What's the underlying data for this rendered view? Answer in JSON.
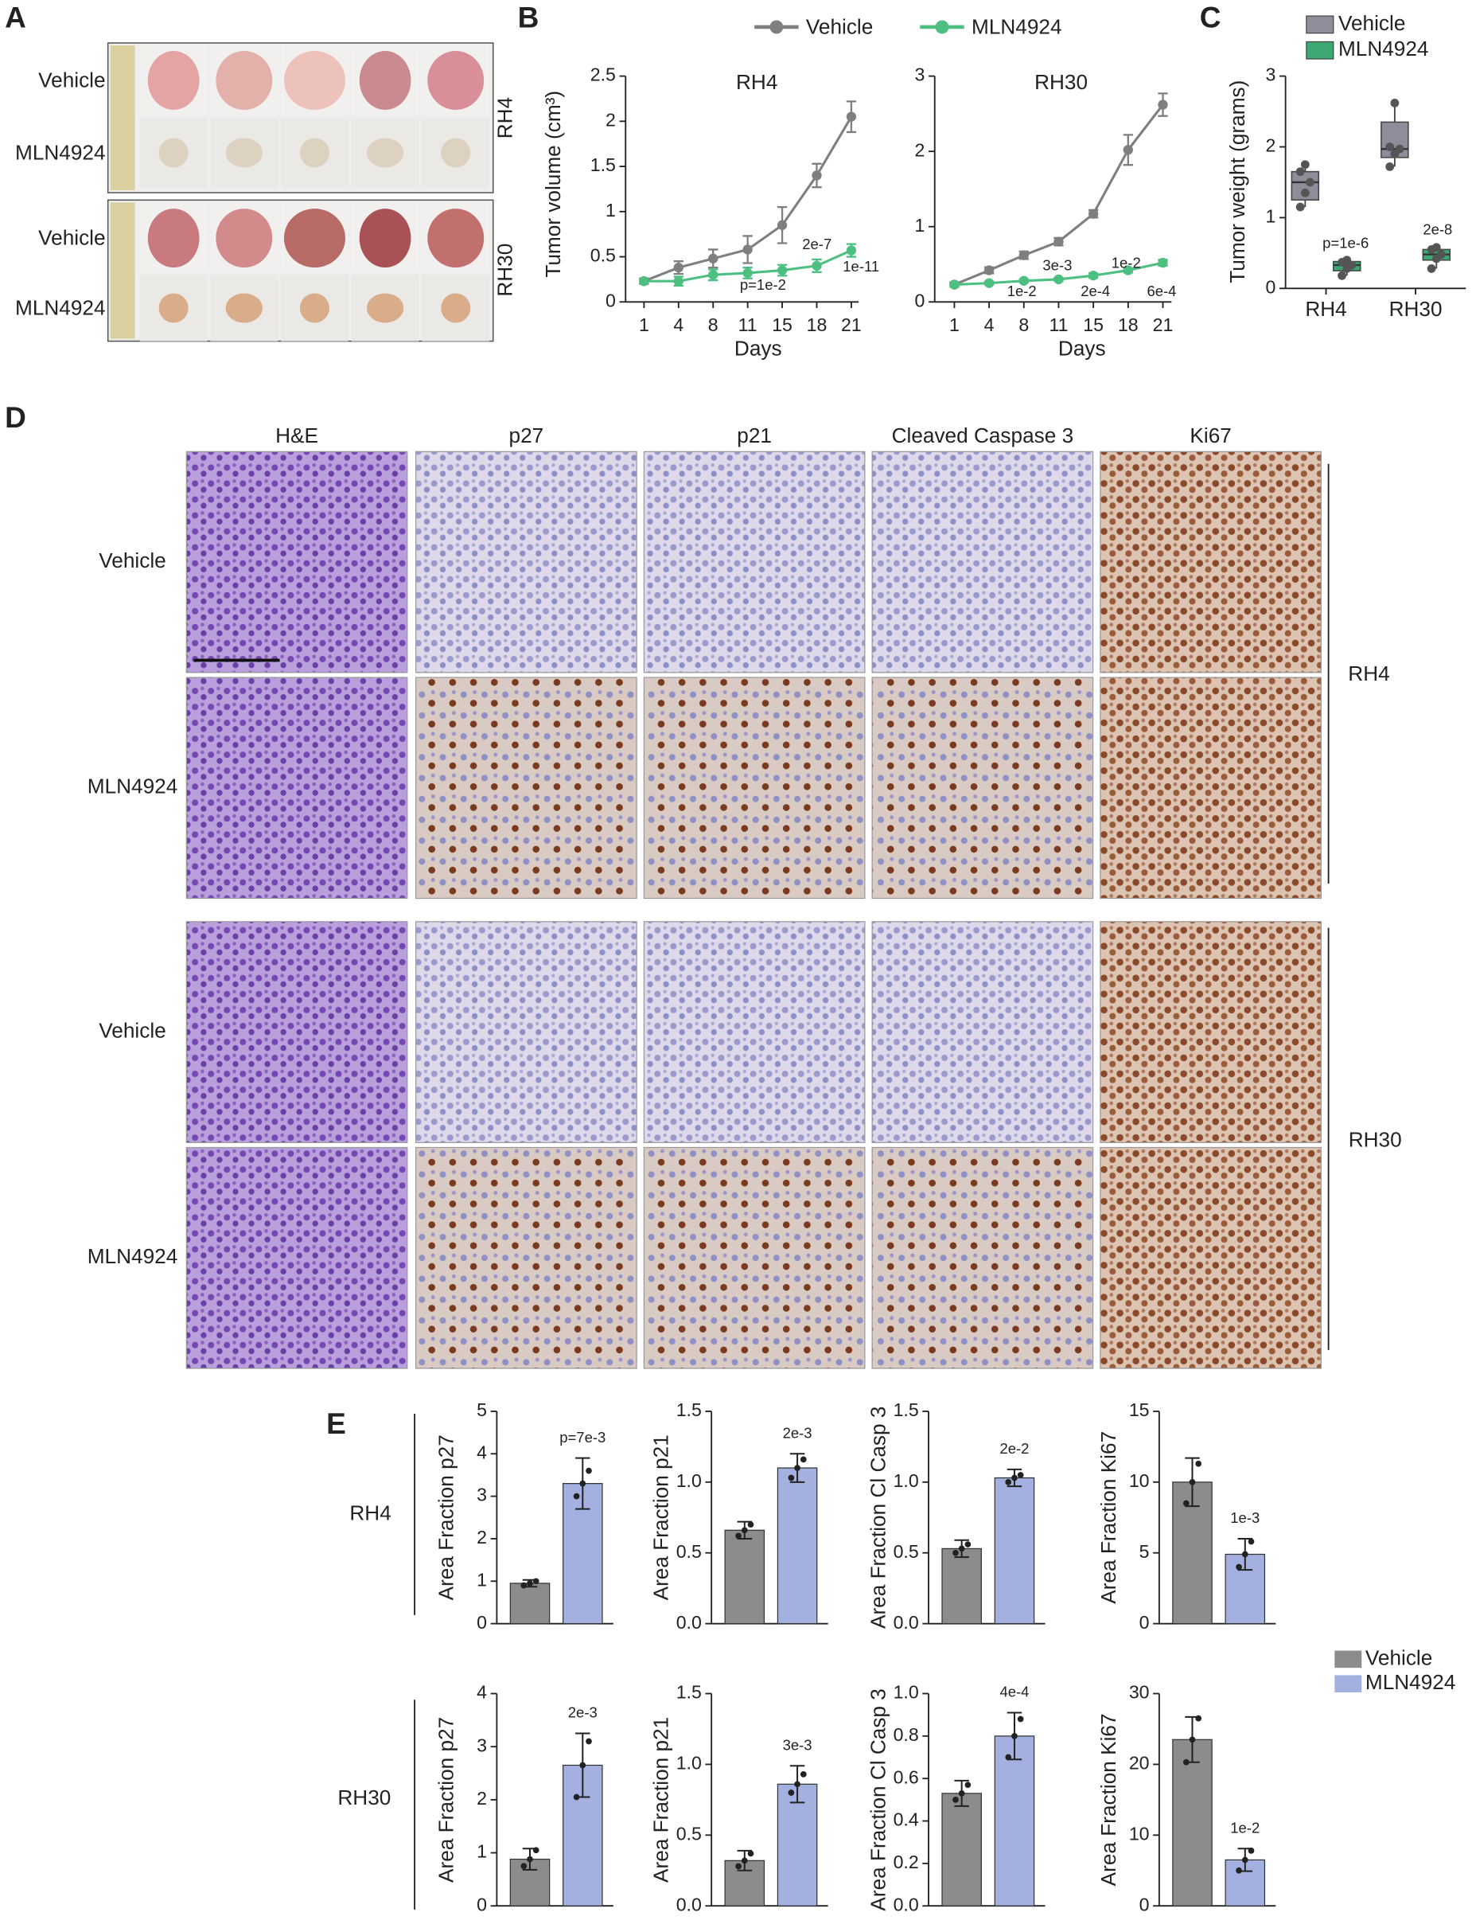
{
  "panel_a": {
    "label": "A",
    "row_labels": [
      "Vehicle",
      "MLN4924",
      "Vehicle",
      "MLN4924"
    ],
    "group_labels": [
      "RH4",
      "RH30"
    ]
  },
  "panel_b": {
    "label": "B"
  },
  "panel_c": {
    "label": "C"
  },
  "panel_d": {
    "label": "D",
    "columns": [
      "H&E",
      "p27",
      "p21",
      "Cleaved Caspase 3",
      "Ki67"
    ],
    "row_labels": [
      "Vehicle",
      "MLN4924",
      "Vehicle",
      "MLN4924"
    ],
    "group_labels": [
      "RH4",
      "RH30"
    ]
  },
  "panel_e": {
    "label": "E",
    "row_labels": [
      "RH4",
      "RH30"
    ],
    "legend": [
      {
        "name": "Vehicle",
        "color": "#8a8c8e"
      },
      {
        "name": "MLN4924",
        "color": "#a3b0e0"
      }
    ]
  },
  "chart_data": [
    {
      "type": "line",
      "title": "RH4",
      "x_label": "Days",
      "y_label": "Tumor volume (cm³)",
      "categories": [
        "1",
        "4",
        "8",
        "11",
        "15",
        "18",
        "21"
      ],
      "ylim": [
        0,
        2.5
      ],
      "yticks": [
        0,
        0.5,
        1,
        1.5,
        2,
        2.5
      ],
      "series": [
        {
          "name": "Vehicle",
          "color": "#7f7f7f",
          "values": [
            0.23,
            0.38,
            0.48,
            0.58,
            0.85,
            1.4,
            2.05
          ],
          "errors": [
            0.03,
            0.07,
            0.1,
            0.15,
            0.2,
            0.13,
            0.17
          ]
        },
        {
          "name": "MLN4924",
          "color": "#4dbf80",
          "values": [
            0.23,
            0.23,
            0.3,
            0.32,
            0.35,
            0.4,
            0.57
          ],
          "errors": [
            0.02,
            0.05,
            0.06,
            0.06,
            0.06,
            0.07,
            0.07
          ]
        }
      ],
      "annotations": [
        "p=1e-2",
        "2e-7",
        "1e-11"
      ]
    },
    {
      "type": "line",
      "title": "RH30",
      "x_label": "Days",
      "categories": [
        "1",
        "4",
        "8",
        "11",
        "15",
        "18",
        "21"
      ],
      "ylim": [
        0,
        3
      ],
      "yticks": [
        0,
        1,
        2,
        3
      ],
      "series": [
        {
          "color": "#7f7f7f",
          "values": [
            0.23,
            0.42,
            0.62,
            0.8,
            1.17,
            2.02,
            2.62
          ],
          "errors": [
            0.03,
            0.04,
            0.05,
            0.05,
            0.05,
            0.2,
            0.15
          ]
        },
        {
          "color": "#4dbf80",
          "values": [
            0.23,
            0.25,
            0.28,
            0.3,
            0.35,
            0.42,
            0.52
          ],
          "errors": [
            0.02,
            0.02,
            0.02,
            0.02,
            0.03,
            0.03,
            0.04
          ]
        }
      ],
      "annotations": [
        "1e-2",
        "3e-3",
        "2e-4",
        "1e-2",
        "6e-4"
      ]
    },
    {
      "type": "box",
      "y_label": "Tumor weight (grams)",
      "categories": [
        "RH4",
        "RH30"
      ],
      "ylim": [
        0,
        3
      ],
      "yticks": [
        0,
        1,
        2,
        3
      ],
      "series": [
        {
          "name": "Vehicle",
          "color": "#8e8e9a",
          "boxes": [
            {
              "min": 1.15,
              "q1": 1.25,
              "median": 1.5,
              "q3": 1.65,
              "max": 1.75,
              "points": [
                1.15,
                1.35,
                1.5,
                1.65,
                1.75
              ]
            },
            {
              "min": 1.72,
              "q1": 1.85,
              "median": 1.97,
              "q3": 2.35,
              "max": 2.62,
              "points": [
                1.72,
                1.9,
                1.97,
                2.0,
                2.62
              ]
            }
          ]
        },
        {
          "name": "MLN4924",
          "color": "#3aa870",
          "boxes": [
            {
              "min": 0.18,
              "q1": 0.25,
              "median": 0.33,
              "q3": 0.38,
              "max": 0.42,
              "points": [
                0.18,
                0.28,
                0.33,
                0.37,
                0.4
              ]
            },
            {
              "min": 0.28,
              "q1": 0.4,
              "median": 0.48,
              "q3": 0.55,
              "max": 0.6,
              "points": [
                0.28,
                0.42,
                0.48,
                0.55,
                0.58
              ]
            }
          ]
        }
      ],
      "annotations": [
        "p=1e-6",
        "2e-8"
      ]
    },
    {
      "type": "bar",
      "y_label": "Area Fraction p27",
      "ylim": [
        0,
        5
      ],
      "yticks": [
        0,
        1,
        2,
        3,
        4,
        5
      ],
      "colors": [
        "#8a8c8e",
        "#a3b0e0"
      ],
      "values": [
        0.95,
        3.3
      ],
      "errors": [
        0.08,
        0.6
      ],
      "points": [
        [
          0.9,
          0.95,
          1.0
        ],
        [
          3.0,
          3.3,
          3.6
        ]
      ],
      "annotation": "p=7e-3"
    },
    {
      "type": "bar",
      "y_label": "Area Fraction p21",
      "ylim": [
        0,
        1.5
      ],
      "yticks": [
        {
          "value": 0,
          "label": "0.0"
        },
        0.5,
        {
          "value": 1,
          "label": "1.0"
        },
        1.5
      ],
      "colors": [
        "#8a8c8e",
        "#a3b0e0"
      ],
      "values": [
        0.66,
        1.1
      ],
      "errors": [
        0.06,
        0.1
      ],
      "points": [
        [
          0.62,
          0.66,
          0.7
        ],
        [
          1.03,
          1.1,
          1.16
        ]
      ],
      "annotation": "2e-3"
    },
    {
      "type": "bar",
      "y_label": "Area Fraction Cl Casp 3",
      "ylim": [
        0,
        1.5
      ],
      "yticks": [
        {
          "value": 0,
          "label": "0.0"
        },
        0.5,
        {
          "value": 1,
          "label": "1.0"
        },
        1.5
      ],
      "colors": [
        "#8a8c8e",
        "#a3b0e0"
      ],
      "values": [
        0.53,
        1.03
      ],
      "errors": [
        0.06,
        0.06
      ],
      "points": [
        [
          0.5,
          0.53,
          0.56
        ],
        [
          1.0,
          1.03,
          1.05
        ]
      ],
      "annotation": "2e-2"
    },
    {
      "type": "bar",
      "y_label": "Area Fraction Ki67",
      "ylim": [
        0,
        15
      ],
      "yticks": [
        0,
        5,
        10,
        15
      ],
      "colors": [
        "#8a8c8e",
        "#a3b0e0"
      ],
      "values": [
        10,
        4.9
      ],
      "errors": [
        1.7,
        1.1
      ],
      "points": [
        [
          8.5,
          10,
          11.3
        ],
        [
          4.0,
          4.9,
          5.8
        ]
      ],
      "annotation": "1e-3"
    },
    {
      "type": "bar",
      "y_label": "Area Fraction p27",
      "ylim": [
        0,
        4
      ],
      "yticks": [
        0,
        1,
        2,
        3,
        4
      ],
      "colors": [
        "#8a8c8e",
        "#a3b0e0"
      ],
      "values": [
        0.88,
        2.65
      ],
      "errors": [
        0.2,
        0.6
      ],
      "points": [
        [
          0.75,
          0.88,
          1.05
        ],
        [
          2.05,
          2.65,
          3.1
        ]
      ],
      "annotation": "2e-3"
    },
    {
      "type": "bar",
      "y_label": "Area Fraction p21",
      "ylim": [
        0,
        1.5
      ],
      "yticks": [
        {
          "value": 0,
          "label": "0.0"
        },
        0.5,
        {
          "value": 1,
          "label": "1.0"
        },
        1.5
      ],
      "colors": [
        "#8a8c8e",
        "#a3b0e0"
      ],
      "values": [
        0.32,
        0.86
      ],
      "errors": [
        0.07,
        0.13
      ],
      "points": [
        [
          0.28,
          0.32,
          0.37
        ],
        [
          0.8,
          0.86,
          0.93
        ]
      ],
      "annotation": "3e-3"
    },
    {
      "type": "bar",
      "y_label": "Area Fraction Cl Casp 3",
      "ylim": [
        0,
        1
      ],
      "yticks": [
        {
          "value": 0,
          "label": "0.0"
        },
        0.2,
        0.4,
        0.6,
        0.8,
        {
          "value": 1,
          "label": "1.0"
        }
      ],
      "colors": [
        "#8a8c8e",
        "#a3b0e0"
      ],
      "values": [
        0.53,
        0.8
      ],
      "errors": [
        0.06,
        0.11
      ],
      "points": [
        [
          0.5,
          0.53,
          0.57
        ],
        [
          0.7,
          0.8,
          0.88
        ]
      ],
      "annotation": "4e-4"
    },
    {
      "type": "bar",
      "y_label": "Area Fraction Ki67",
      "ylim": [
        0,
        30
      ],
      "yticks": [
        0,
        10,
        20,
        30
      ],
      "colors": [
        "#8a8c8e",
        "#a3b0e0"
      ],
      "values": [
        23.5,
        6.5
      ],
      "errors": [
        3.2,
        1.6
      ],
      "points": [
        [
          20.3,
          23.5,
          26.5
        ],
        [
          5.0,
          6.5,
          7.8
        ]
      ],
      "annotation": "1e-2"
    }
  ]
}
